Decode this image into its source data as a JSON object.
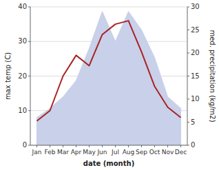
{
  "chart_data": {
    "type": "line",
    "categories": [
      "Jan",
      "Feb",
      "Mar",
      "Apr",
      "May",
      "Jun",
      "Jul",
      "Aug",
      "Sep",
      "Oct",
      "Nov",
      "Dec"
    ],
    "xlabel": "date (month)",
    "ylabel": "max temp (C)",
    "y2label": "med. precipitation (kg/m2)",
    "series": [
      {
        "type": "area",
        "axis": "y2",
        "color": "#c8d0ea",
        "values": [
          6,
          8,
          10.5,
          14,
          21,
          29,
          22.5,
          29,
          25,
          19,
          10.5,
          8
        ]
      },
      {
        "type": "line",
        "color": "#aa2222",
        "values": [
          7,
          10,
          20,
          26,
          23,
          32,
          35,
          36,
          27,
          17,
          11,
          8
        ]
      }
    ],
    "ylim": [
      0,
      40
    ],
    "yticks": [
      0,
      10,
      20,
      30,
      40
    ],
    "y2lim": [
      0,
      30
    ],
    "y2ticks": [
      0,
      5,
      10,
      15,
      20,
      25,
      30
    ],
    "grid": true
  }
}
